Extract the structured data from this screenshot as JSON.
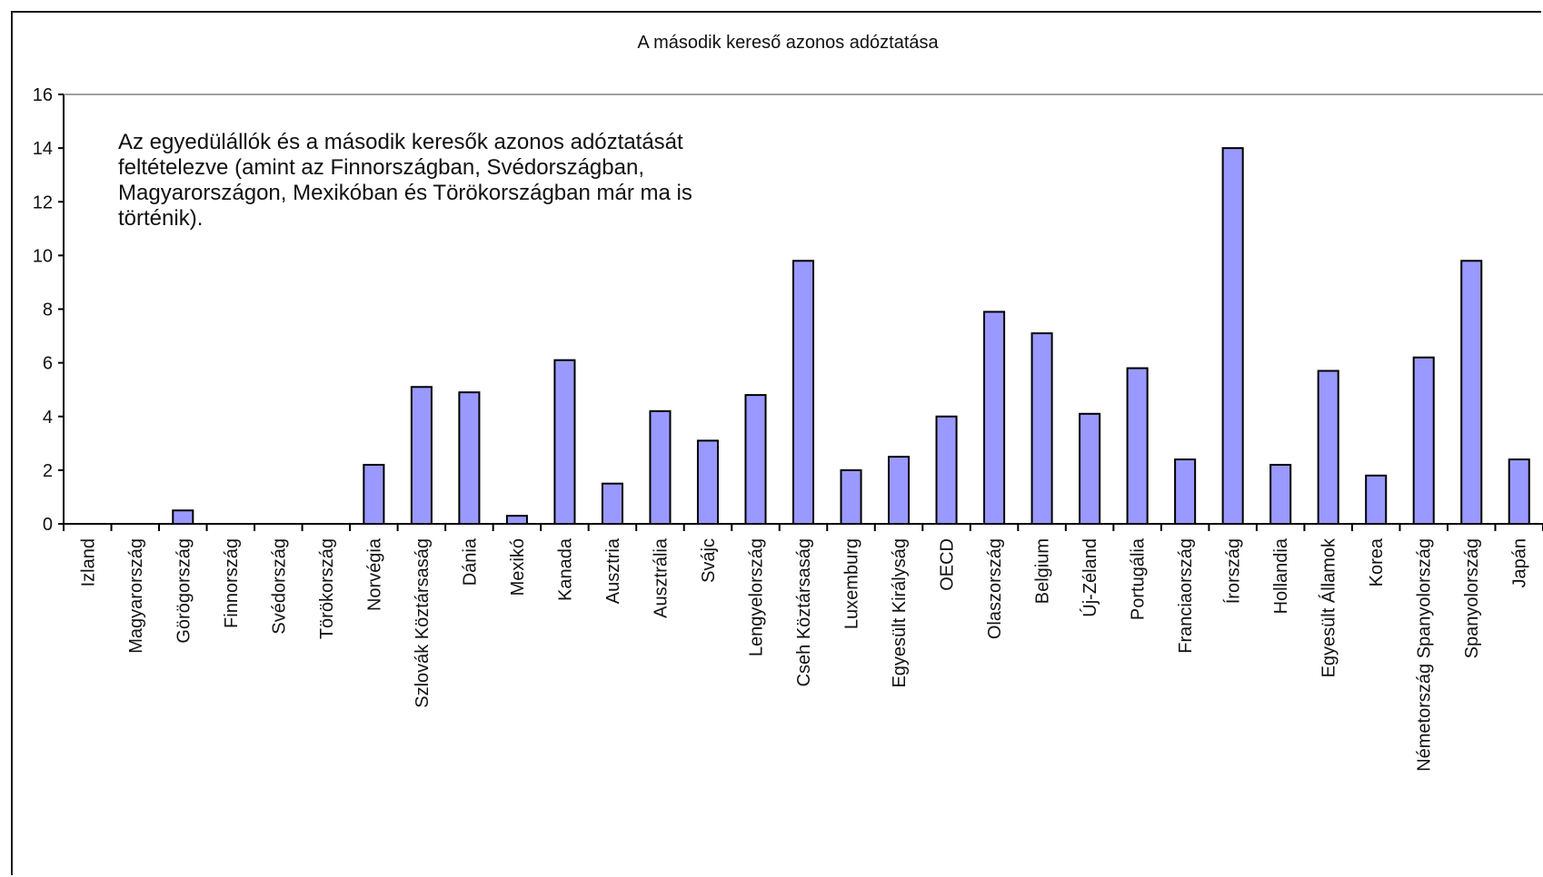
{
  "chart_data": {
    "type": "bar",
    "title": "A második kereső azonos adóztatása",
    "annotation": [
      "Az egyedülállók és a második keresők azonos adóztatását",
      "feltételezve (amint az Finnországban, Svédországban,",
      "Magyarországon, Mexikóban és Törökországban már ma is",
      "történik)."
    ],
    "xlabel": "",
    "ylabel": "",
    "ylim": [
      0,
      16
    ],
    "yticks": [
      "0",
      "2",
      "4",
      "6",
      "8",
      "10",
      "12",
      "14",
      "16"
    ],
    "grid": false,
    "categories": [
      "Izland",
      "Magyarország",
      "Görögország",
      "Finnország",
      "Svédország",
      "Törökország",
      "Norvégia",
      "Szlovák Köztársaság",
      "Dánia",
      "Mexikó",
      "Kanada",
      "Ausztria",
      "Ausztrália",
      "Svájc",
      "Lengyelország",
      "Cseh Köztársaság",
      "Luxemburg",
      "Egyesült Királyság",
      "OECD",
      "Olaszország",
      "Belgium",
      "Új-Zéland",
      "Portugália",
      "Franciaország",
      "Írország",
      "Hollandia",
      "Egyesült Államok",
      "Korea",
      "Németország Spanyolország",
      "Spanyolország",
      "Japán"
    ],
    "values": [
      0,
      0,
      0.5,
      0,
      0,
      0,
      2.2,
      5.1,
      4.9,
      0.3,
      6.1,
      1.5,
      4.2,
      3.1,
      4.8,
      9.8,
      2.0,
      2.5,
      4.0,
      7.9,
      7.1,
      4.1,
      5.8,
      2.4,
      14.0,
      2.2,
      5.7,
      1.8,
      6.2,
      9.8,
      2.4
    ],
    "colors": {
      "bar_fill": "#9999ff",
      "bar_stroke": "#000000",
      "axis": "#000000"
    }
  }
}
